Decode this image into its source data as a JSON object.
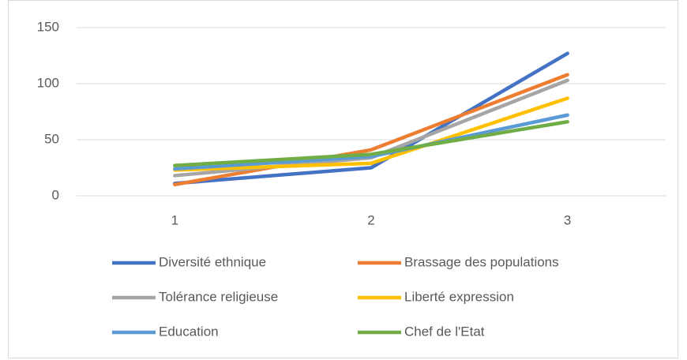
{
  "chart_data": {
    "type": "line",
    "categories": [
      "1",
      "2",
      "3"
    ],
    "series": [
      {
        "name": "Diversité ethnique",
        "color": "#4472c4",
        "values": [
          11,
          25,
          127
        ]
      },
      {
        "name": "Brassage des populations",
        "color": "#ed7d31",
        "values": [
          10,
          41,
          108
        ]
      },
      {
        "name": "Tolérance religieuse",
        "color": "#a5a5a5",
        "values": [
          18,
          34,
          103
        ]
      },
      {
        "name": "Liberté expression",
        "color": "#ffc000",
        "values": [
          23,
          29,
          87
        ]
      },
      {
        "name": "Education",
        "color": "#5b9bd5",
        "values": [
          24,
          35,
          72
        ]
      },
      {
        "name": "Chef de l'Etat",
        "color": "#70ad47",
        "values": [
          27,
          37,
          66
        ]
      }
    ],
    "ylim": [
      0,
      150
    ],
    "yticks": [
      0,
      50,
      100,
      150
    ],
    "grid": true,
    "legend": "bottom"
  }
}
